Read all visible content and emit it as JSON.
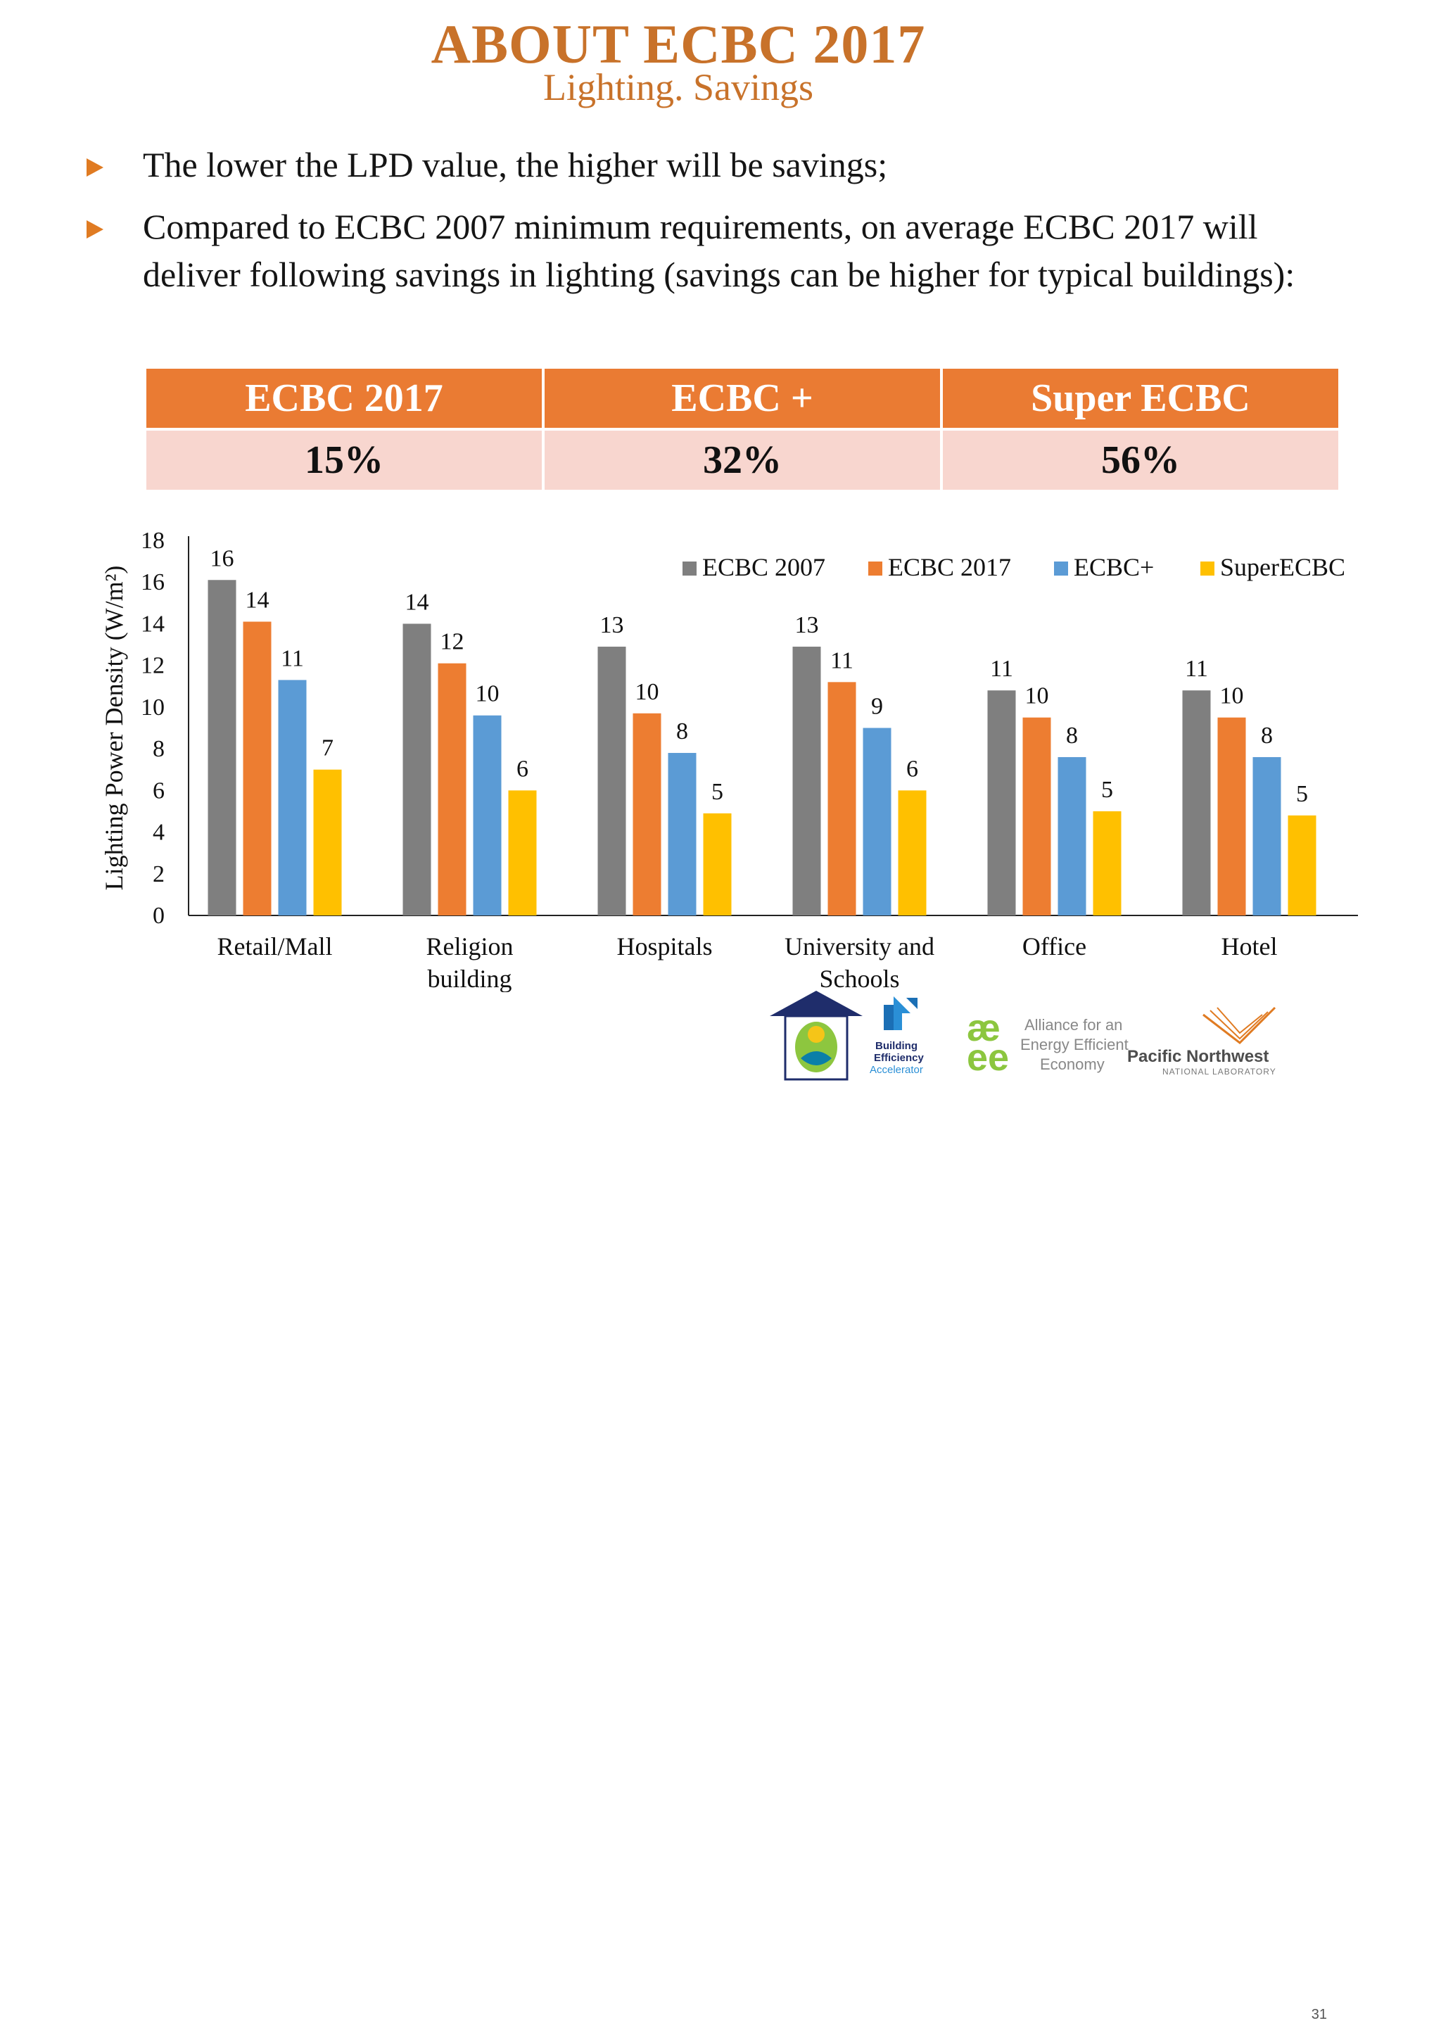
{
  "header": {
    "title": "ABOUT ECBC 2017",
    "subtitle": "Lighting. Savings"
  },
  "bullets": [
    "The lower the LPD value, the higher will be savings;",
    "Compared to ECBC 2007 minimum requirements, on average ECBC 2017 will deliver following savings in lighting (savings can be higher for typical buildings):"
  ],
  "savings_table": {
    "headers": [
      "ECBC 2017",
      "ECBC +",
      "Super ECBC"
    ],
    "values": [
      "15%",
      "32%",
      "56%"
    ]
  },
  "chart_data": {
    "type": "bar",
    "title": "",
    "xlabel": "",
    "ylabel": "Lighting Power Density (W/m²)",
    "ylim": [
      0,
      18
    ],
    "yticks": [
      0,
      2,
      4,
      6,
      8,
      10,
      12,
      14,
      16,
      18
    ],
    "grid": false,
    "legend_position": "top-right",
    "categories": [
      "Retail/Mall",
      "Religion building",
      "Hospitals",
      "University and Schools",
      "Office",
      "Hotel"
    ],
    "category_lines": [
      [
        "Retail/Mall"
      ],
      [
        "Religion",
        "building"
      ],
      [
        "Hospitals"
      ],
      [
        "University and",
        "Schools"
      ],
      [
        "Office"
      ],
      [
        "Hotel"
      ]
    ],
    "series": [
      {
        "name": "ECBC 2007",
        "color": "#7f7f7f",
        "values": [
          16.1,
          14,
          12.9,
          12.9,
          10.8,
          10.8
        ],
        "labels": [
          "16",
          "14",
          "13",
          "13",
          "11",
          "11"
        ]
      },
      {
        "name": "ECBC 2017",
        "color": "#ed7d31",
        "values": [
          14.1,
          12.1,
          9.7,
          11.2,
          9.5,
          9.5
        ],
        "labels": [
          "14",
          "12",
          "10",
          "11",
          "10",
          "10"
        ]
      },
      {
        "name": "ECBC+",
        "color": "#5b9bd5",
        "values": [
          11.3,
          9.6,
          7.8,
          9.0,
          7.6,
          7.6
        ],
        "labels": [
          "11",
          "10",
          "8",
          "9",
          "8",
          "8"
        ]
      },
      {
        "name": "SuperECBC",
        "color": "#ffc000",
        "values": [
          7.0,
          6.0,
          4.9,
          6.0,
          5.0,
          4.8
        ],
        "labels": [
          "7",
          "6",
          "5",
          "6",
          "5",
          "5"
        ]
      }
    ]
  },
  "footer": {
    "page_number": "31",
    "logos": {
      "bee_name": "BEE",
      "bea_lines": [
        "Building",
        "Efficiency",
        "Accelerator"
      ],
      "aeee_lines": [
        "Alliance for an",
        "Energy Efficient",
        "Economy"
      ],
      "pnnl_name": "Pacific Northwest",
      "pnnl_sub": "NATIONAL LABORATORY"
    }
  },
  "colors": {
    "accent": "#c8722a",
    "table_header": "#ea7b33",
    "table_row": "#f8d6cf"
  }
}
